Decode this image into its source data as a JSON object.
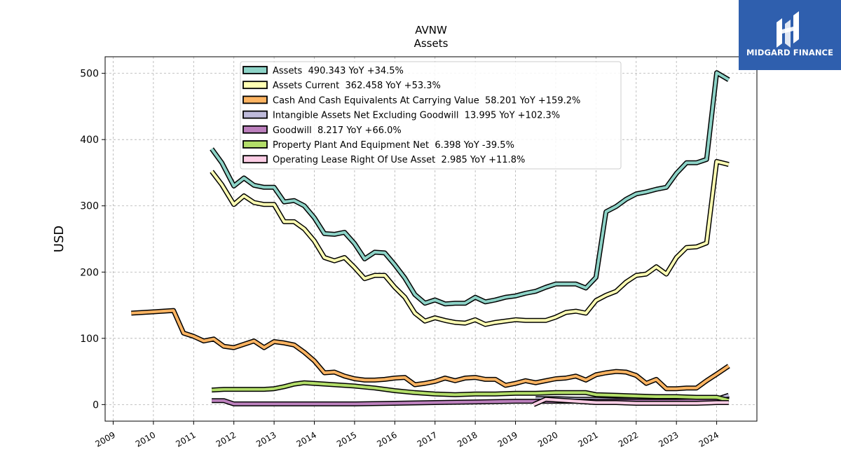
{
  "chart_data": {
    "type": "line",
    "title": "AVNW",
    "subtitle": "Assets",
    "ylabel": "USD",
    "xlabel": "",
    "xlim": [
      2008.8,
      2025.0
    ],
    "ylim": [
      -25,
      525
    ],
    "x_ticks": [
      "2009",
      "2010",
      "2011",
      "2012",
      "2013",
      "2014",
      "2015",
      "2016",
      "2017",
      "2018",
      "2019",
      "2020",
      "2021",
      "2022",
      "2023",
      "2024"
    ],
    "y_ticks": [
      "0",
      "100",
      "200",
      "300",
      "400",
      "500"
    ],
    "grid": true,
    "legend_position": "top-center",
    "series": [
      {
        "name": "Assets",
        "legend_value": "490.343",
        "legend_yoy": "YoY +34.5%",
        "color": "#8dd3c7",
        "x": [
          2011.45,
          2011.7,
          2012.0,
          2012.25,
          2012.5,
          2012.75,
          2013.0,
          2013.25,
          2013.5,
          2013.75,
          2014.0,
          2014.25,
          2014.5,
          2014.75,
          2015.0,
          2015.25,
          2015.5,
          2015.75,
          2016.0,
          2016.25,
          2016.5,
          2016.75,
          2017.0,
          2017.25,
          2017.5,
          2017.75,
          2018.0,
          2018.25,
          2018.5,
          2018.75,
          2019.0,
          2019.25,
          2019.5,
          2019.75,
          2020.0,
          2020.25,
          2020.5,
          2020.75,
          2021.0,
          2021.25,
          2021.5,
          2021.75,
          2022.0,
          2022.25,
          2022.5,
          2022.75,
          2023.0,
          2023.25,
          2023.5,
          2023.75,
          2024.0,
          2024.3
        ],
        "values": [
          386,
          365,
          330,
          342,
          331,
          328,
          328,
          306,
          308,
          300,
          282,
          258,
          257,
          260,
          243,
          220,
          230,
          229,
          211,
          191,
          166,
          153,
          158,
          152,
          153,
          153,
          162,
          155,
          158,
          162,
          164,
          168,
          171,
          177,
          182,
          182,
          182,
          176,
          192,
          291,
          299,
          310,
          318,
          321,
          325,
          328,
          349,
          365,
          365,
          370,
          501,
          490.343
        ]
      },
      {
        "name": "Assets Current",
        "legend_value": "362.458",
        "legend_yoy": "YoY +53.3%",
        "color": "#ffffb3",
        "x": [
          2011.45,
          2011.7,
          2012.0,
          2012.25,
          2012.5,
          2012.75,
          2013.0,
          2013.25,
          2013.5,
          2013.75,
          2014.0,
          2014.25,
          2014.5,
          2014.75,
          2015.0,
          2015.25,
          2015.5,
          2015.75,
          2016.0,
          2016.25,
          2016.5,
          2016.75,
          2017.0,
          2017.25,
          2017.5,
          2017.75,
          2018.0,
          2018.25,
          2018.5,
          2018.75,
          2019.0,
          2019.25,
          2019.5,
          2019.75,
          2020.0,
          2020.25,
          2020.5,
          2020.75,
          2021.0,
          2021.25,
          2021.5,
          2021.75,
          2022.0,
          2022.25,
          2022.5,
          2022.75,
          2023.0,
          2023.25,
          2023.5,
          2023.75,
          2024.0,
          2024.3
        ],
        "values": [
          352,
          332,
          302,
          315,
          305,
          302,
          302,
          276,
          276,
          265,
          247,
          222,
          217,
          222,
          207,
          190,
          195,
          195,
          177,
          162,
          138,
          126,
          131,
          127,
          124,
          123,
          128,
          121,
          124,
          126,
          128,
          127,
          127,
          127,
          132,
          139,
          141,
          138,
          157,
          165,
          171,
          185,
          195,
          197,
          208,
          197,
          222,
          237,
          238,
          244,
          367,
          362.458
        ]
      },
      {
        "name": "Cash And Cash Equivalents At Carrying Value",
        "legend_value": "58.201",
        "legend_yoy": "YoY +159.2%",
        "color": "#fdb462",
        "x": [
          2009.45,
          2010.0,
          2010.5,
          2010.75,
          2011.0,
          2011.25,
          2011.5,
          2011.75,
          2012.0,
          2012.25,
          2012.5,
          2012.75,
          2013.0,
          2013.25,
          2013.5,
          2013.75,
          2014.0,
          2014.25,
          2014.5,
          2014.75,
          2015.0,
          2015.25,
          2015.5,
          2015.75,
          2016.0,
          2016.25,
          2016.5,
          2016.75,
          2017.0,
          2017.25,
          2017.5,
          2017.75,
          2018.0,
          2018.25,
          2018.5,
          2018.75,
          2019.0,
          2019.25,
          2019.5,
          2019.75,
          2020.0,
          2020.25,
          2020.5,
          2020.75,
          2021.0,
          2021.25,
          2021.5,
          2021.75,
          2022.0,
          2022.25,
          2022.5,
          2022.75,
          2023.0,
          2023.25,
          2023.5,
          2023.75,
          2024.0,
          2024.3
        ],
        "values": [
          138,
          140,
          142,
          108,
          103,
          96,
          99,
          88,
          86,
          91,
          96,
          86,
          95,
          93,
          90,
          79,
          66,
          48,
          49,
          43,
          39,
          37,
          37,
          38,
          40,
          41,
          30,
          32,
          35,
          40,
          36,
          40,
          41,
          38,
          38,
          29,
          32,
          36,
          33,
          36,
          39,
          40,
          43,
          37,
          45,
          48,
          50,
          49,
          44,
          32,
          38,
          24,
          24,
          25,
          25,
          36,
          46,
          58.201
        ]
      },
      {
        "name": "Intangible Assets Net Excluding Goodwill",
        "legend_value": "13.995",
        "legend_yoy": "YoY +102.3%",
        "color": "#bebada",
        "x": [
          2019.5,
          2019.75,
          2020.0,
          2020.5,
          2021.0,
          2021.5,
          2022.0,
          2022.5,
          2023.0,
          2023.5,
          2024.0,
          2024.3
        ],
        "values": [
          9,
          9,
          9,
          8,
          8,
          7,
          7,
          6,
          6,
          6,
          8,
          13.995
        ]
      },
      {
        "name": "Goodwill",
        "legend_value": "8.217",
        "legend_yoy": "YoY +66.0%",
        "color": "#bc80bd",
        "x": [
          2011.45,
          2011.75,
          2012.0,
          2013.0,
          2014.0,
          2015.0,
          2016.0,
          2017.0,
          2018.0,
          2019.0,
          2019.6,
          2020.0,
          2021.0,
          2022.0,
          2023.0,
          2024.0,
          2024.3
        ],
        "values": [
          6,
          6,
          1,
          1,
          1,
          1,
          2,
          3,
          4,
          5,
          5,
          5,
          5,
          5,
          5,
          6,
          8.217
        ]
      },
      {
        "name": "Property Plant And Equipment Net",
        "legend_value": "6.398",
        "legend_yoy": "YoY -39.5%",
        "color": "#b3de69",
        "x": [
          2011.45,
          2011.75,
          2012.0,
          2012.5,
          2012.75,
          2013.0,
          2013.25,
          2013.5,
          2013.75,
          2014.0,
          2014.5,
          2015.0,
          2015.5,
          2016.0,
          2016.5,
          2017.0,
          2017.5,
          2018.0,
          2018.5,
          2019.0,
          2019.5,
          2020.0,
          2020.5,
          2020.75,
          2021.0,
          2021.5,
          2022.0,
          2022.5,
          2023.0,
          2023.5,
          2024.0,
          2024.3
        ],
        "values": [
          22,
          23,
          23,
          23,
          23,
          24,
          27,
          31,
          33,
          32,
          30,
          28,
          25,
          21,
          18,
          16,
          15,
          16,
          16,
          17,
          17,
          18,
          18,
          18,
          15,
          14,
          13,
          12,
          12,
          11,
          11,
          6.398
        ]
      },
      {
        "name": "Operating Lease Right Of Use Asset",
        "legend_value": "2.985",
        "legend_yoy": "YoY +11.8%",
        "color": "#fccde5",
        "x": [
          2019.45,
          2019.75,
          2020.0,
          2020.5,
          2021.0,
          2021.5,
          2022.0,
          2022.5,
          2023.0,
          2023.5,
          2024.0,
          2024.3
        ],
        "values": [
          0,
          8,
          7,
          5,
          3,
          3,
          2,
          2,
          2,
          2,
          3,
          2.985
        ]
      }
    ]
  },
  "branding": {
    "logo_text": "MIDGARD FINANCE",
    "logo_background": "#2f5fae"
  }
}
